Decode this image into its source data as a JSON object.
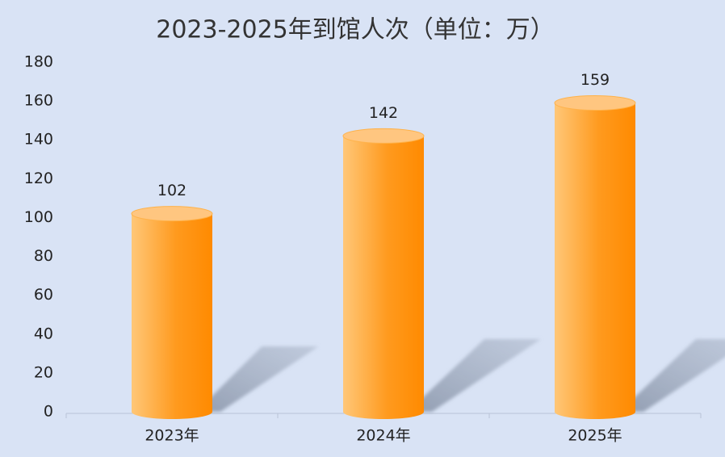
{
  "chart_data": {
    "type": "bar",
    "title": "2023-2025年到馆人次（单位：万）",
    "categories": [
      "2023年",
      "2024年",
      "2025年"
    ],
    "values": [
      102,
      142,
      159
    ],
    "color": "#ff9000",
    "ylim": [
      0,
      180
    ],
    "yticks": [
      0,
      20,
      40,
      60,
      80,
      100,
      120,
      140,
      160,
      180
    ],
    "grid": false
  }
}
